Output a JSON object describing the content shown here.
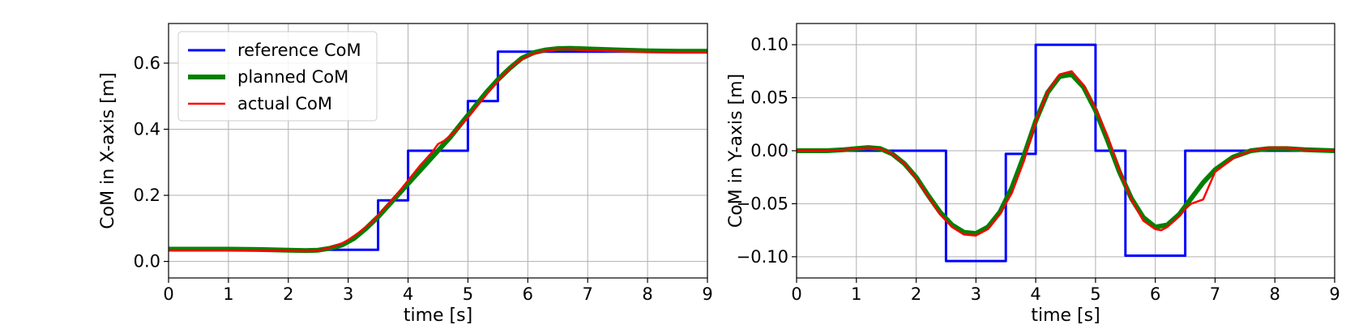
{
  "chart_data": [
    {
      "type": "line",
      "xlabel": "time [s]",
      "ylabel": "CoM in X-axis [m]",
      "xlim": [
        0,
        9
      ],
      "ylim": [
        -0.05,
        0.72
      ],
      "xticks": [
        0,
        1,
        2,
        3,
        4,
        5,
        6,
        7,
        8,
        9
      ],
      "yticks": [
        0.0,
        0.2,
        0.4,
        0.6
      ],
      "ytick_labels": [
        "0.0",
        "0.2",
        "0.4",
        "0.6"
      ],
      "grid": true,
      "legend": "top-left",
      "series": [
        {
          "name": "reference CoM",
          "color": "#0000ff",
          "style": "step",
          "x": [
            0,
            3.5,
            3.5,
            4.0,
            4.0,
            5.0,
            5.0,
            5.5,
            5.5,
            9.0
          ],
          "y": [
            0.035,
            0.035,
            0.185,
            0.185,
            0.335,
            0.335,
            0.485,
            0.485,
            0.635,
            0.635
          ]
        },
        {
          "name": "planned CoM",
          "color": "#008000",
          "style": "thick",
          "x": [
            0,
            0.5,
            1.0,
            1.5,
            2.0,
            2.3,
            2.5,
            2.7,
            2.9,
            3.1,
            3.3,
            3.5,
            3.7,
            3.9,
            4.1,
            4.3,
            4.5,
            4.7,
            4.9,
            5.1,
            5.3,
            5.5,
            5.7,
            5.9,
            6.1,
            6.3,
            6.5,
            6.7,
            7.0,
            7.5,
            8.0,
            8.5,
            9.0
          ],
          "y": [
            0.037,
            0.037,
            0.037,
            0.036,
            0.034,
            0.033,
            0.034,
            0.04,
            0.05,
            0.07,
            0.1,
            0.135,
            0.175,
            0.215,
            0.255,
            0.295,
            0.335,
            0.375,
            0.42,
            0.465,
            0.51,
            0.55,
            0.585,
            0.615,
            0.632,
            0.64,
            0.644,
            0.645,
            0.643,
            0.64,
            0.637,
            0.636,
            0.636
          ]
        },
        {
          "name": "actual CoM",
          "color": "#ff0000",
          "style": "thin",
          "x": [
            0,
            0.5,
            1.0,
            1.5,
            2.0,
            2.3,
            2.5,
            2.7,
            2.9,
            3.0,
            3.2,
            3.4,
            3.6,
            3.8,
            4.0,
            4.2,
            4.4,
            4.5,
            4.6,
            4.8,
            5.0,
            5.2,
            5.4,
            5.6,
            5.8,
            6.0,
            6.2,
            6.4,
            6.6,
            6.8,
            7.0,
            7.5,
            8.0,
            8.5,
            9.0
          ],
          "y": [
            0.033,
            0.033,
            0.033,
            0.033,
            0.032,
            0.031,
            0.033,
            0.042,
            0.055,
            0.065,
            0.09,
            0.12,
            0.16,
            0.2,
            0.245,
            0.29,
            0.33,
            0.355,
            0.365,
            0.395,
            0.435,
            0.48,
            0.525,
            0.565,
            0.6,
            0.622,
            0.634,
            0.64,
            0.642,
            0.641,
            0.639,
            0.636,
            0.634,
            0.633,
            0.633
          ]
        }
      ]
    },
    {
      "type": "line",
      "xlabel": "time [s]",
      "ylabel": "CoM in Y-axis [m]",
      "xlim": [
        0,
        9
      ],
      "ylim": [
        -0.12,
        0.12
      ],
      "xticks": [
        0,
        1,
        2,
        3,
        4,
        5,
        6,
        7,
        8,
        9
      ],
      "yticks": [
        0.1,
        0.05,
        0.0,
        -0.05,
        -0.1
      ],
      "ytick_labels": [
        "0.10",
        "0.05",
        "0.00",
        "−0.05",
        "−0.10"
      ],
      "grid": true,
      "series": [
        {
          "name": "reference CoM",
          "color": "#0000ff",
          "style": "step",
          "x": [
            0,
            2.5,
            2.5,
            3.5,
            3.5,
            4.0,
            4.0,
            5.0,
            5.0,
            5.5,
            5.5,
            6.5,
            6.5,
            9.0
          ],
          "y": [
            0.0,
            0.0,
            -0.104,
            -0.104,
            -0.003,
            -0.003,
            0.1,
            0.1,
            0.0,
            0.0,
            -0.099,
            -0.099,
            0.0,
            0.0
          ]
        },
        {
          "name": "planned CoM",
          "color": "#008000",
          "style": "thick",
          "x": [
            0,
            0.5,
            0.8,
            1.0,
            1.2,
            1.4,
            1.6,
            1.8,
            2.0,
            2.2,
            2.4,
            2.6,
            2.8,
            3.0,
            3.2,
            3.4,
            3.6,
            3.8,
            4.0,
            4.2,
            4.4,
            4.6,
            4.8,
            5.0,
            5.2,
            5.4,
            5.6,
            5.8,
            6.0,
            6.2,
            6.4,
            6.6,
            6.8,
            7.0,
            7.3,
            7.6,
            7.9,
            8.2,
            8.5,
            9.0
          ],
          "y": [
            0.0,
            0.0,
            0.001,
            0.002,
            0.003,
            0.002,
            -0.003,
            -0.012,
            -0.025,
            -0.042,
            -0.058,
            -0.07,
            -0.077,
            -0.078,
            -0.072,
            -0.058,
            -0.035,
            -0.005,
            0.028,
            0.055,
            0.07,
            0.072,
            0.06,
            0.038,
            0.01,
            -0.02,
            -0.045,
            -0.063,
            -0.072,
            -0.07,
            -0.06,
            -0.045,
            -0.03,
            -0.018,
            -0.006,
            0.0,
            0.002,
            0.002,
            0.001,
            0.0
          ]
        },
        {
          "name": "actual CoM",
          "color": "#ff0000",
          "style": "thin",
          "x": [
            0,
            0.5,
            0.8,
            1.0,
            1.2,
            1.4,
            1.6,
            1.8,
            2.0,
            2.2,
            2.4,
            2.6,
            2.8,
            3.0,
            3.2,
            3.4,
            3.6,
            3.8,
            4.0,
            4.2,
            4.4,
            4.6,
            4.8,
            5.0,
            5.2,
            5.4,
            5.6,
            5.8,
            6.0,
            6.1,
            6.2,
            6.4,
            6.5,
            6.6,
            6.8,
            7.0,
            7.3,
            7.6,
            7.9,
            8.2,
            8.5,
            9.0
          ],
          "y": [
            0.0,
            0.0,
            0.001,
            0.002,
            0.003,
            0.002,
            -0.003,
            -0.012,
            -0.026,
            -0.043,
            -0.06,
            -0.072,
            -0.079,
            -0.08,
            -0.074,
            -0.06,
            -0.04,
            -0.01,
            0.027,
            0.056,
            0.072,
            0.075,
            0.062,
            0.04,
            0.014,
            -0.018,
            -0.046,
            -0.066,
            -0.074,
            -0.075,
            -0.072,
            -0.062,
            -0.055,
            -0.05,
            -0.046,
            -0.02,
            -0.007,
            0.0,
            0.003,
            0.003,
            0.001,
            0.0
          ]
        }
      ]
    }
  ]
}
